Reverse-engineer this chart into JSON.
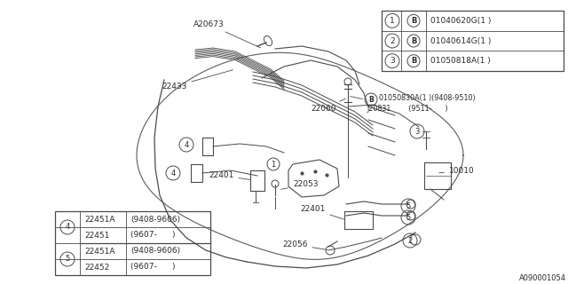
{
  "bg_color": "#ffffff",
  "line_color": "#4a4a4a",
  "text_color": "#2a2a2a",
  "watermark": "A090001054",
  "top_right_box": {
    "rows": [
      {
        "num": "1",
        "part": "01040620G(1 )"
      },
      {
        "num": "2",
        "part": "01040614G(1 )"
      },
      {
        "num": "3",
        "part": "01050818A(1 )"
      }
    ]
  },
  "bottom_left_box": {
    "rows": [
      {
        "num": "4",
        "part1": "22451A",
        "part2": "(9408-9606)"
      },
      {
        "num": "4",
        "part1": "22451",
        "part2": "(9607-      )"
      },
      {
        "num": "5",
        "part1": "22451A",
        "part2": "(9408-9606)"
      },
      {
        "num": "5",
        "part1": "22452",
        "part2": "(9607-      )"
      }
    ]
  }
}
